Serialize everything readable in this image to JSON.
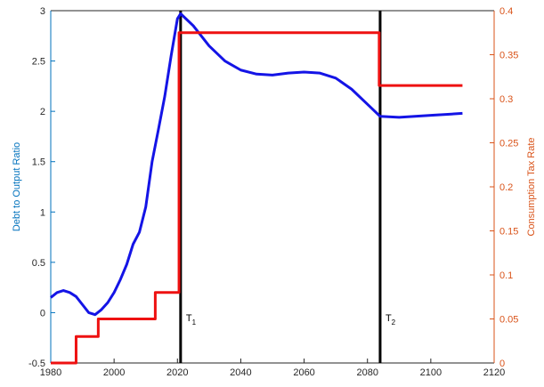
{
  "chart_data": {
    "type": "line",
    "y_label": "Debt to Output Ratio",
    "y2_label": "Consumption Tax Rate",
    "xlim": [
      1980,
      2120
    ],
    "xticks": [
      1980,
      2000,
      2020,
      2040,
      2060,
      2080,
      2100,
      2120
    ],
    "ylim": [
      -0.5,
      3
    ],
    "yticks": [
      -0.5,
      0,
      0.5,
      1,
      1.5,
      2,
      2.5,
      3
    ],
    "y2lim": [
      0,
      0.4
    ],
    "y2ticks": [
      0,
      0.05,
      0.1,
      0.15,
      0.2,
      0.25,
      0.3,
      0.35,
      0.4
    ],
    "y_color": "#0072bd",
    "y2_color": "#d95319",
    "series": [
      {
        "color": "#1414e6",
        "x": [
          1980,
          1982,
          1984,
          1986,
          1988,
          1990,
          1992,
          1994,
          1996,
          1998,
          2000,
          2002,
          2004,
          2006,
          2008,
          2010,
          2012,
          2014,
          2016,
          2018,
          2020,
          2021,
          2025,
          2030,
          2035,
          2040,
          2045,
          2050,
          2055,
          2060,
          2065,
          2070,
          2075,
          2080,
          2084,
          2090,
          2100,
          2110
        ],
        "values": [
          0.15,
          0.2,
          0.22,
          0.2,
          0.16,
          0.08,
          0.0,
          -0.02,
          0.03,
          0.1,
          0.2,
          0.33,
          0.48,
          0.68,
          0.8,
          1.05,
          1.5,
          1.82,
          2.15,
          2.55,
          2.92,
          2.97,
          2.85,
          2.65,
          2.5,
          2.41,
          2.37,
          2.36,
          2.38,
          2.39,
          2.38,
          2.33,
          2.22,
          2.07,
          1.95,
          1.94,
          1.96,
          1.98
        ]
      },
      {
        "color": "#ee1111",
        "axis": "y2",
        "x": [
          1980,
          1988,
          1988,
          1995,
          1995,
          2013,
          2013,
          2020.5,
          2020.5,
          2083.7,
          2083.7,
          2110
        ],
        "values": [
          0,
          0,
          0.03,
          0.03,
          0.05,
          0.05,
          0.08,
          0.08,
          0.375,
          0.375,
          0.315,
          0.315
        ]
      }
    ],
    "vlines": [
      2021,
      2084
    ],
    "annotations": [
      {
        "text": "T",
        "sub": "1",
        "x": 2021,
        "y": -0.05
      },
      {
        "text": "T",
        "sub": "2",
        "x": 2084,
        "y": -0.05
      }
    ]
  }
}
